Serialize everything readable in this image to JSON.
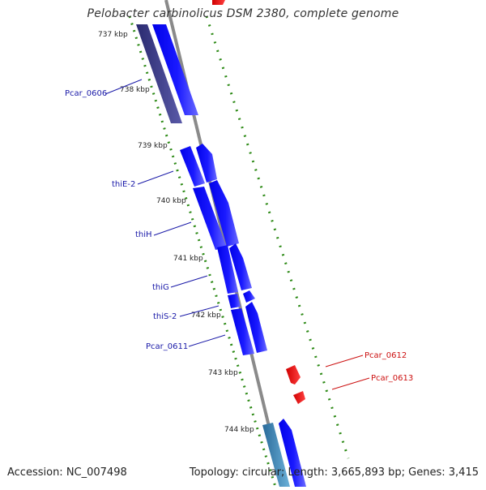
{
  "title": "Pelobacter carbinolicus DSM 2380, complete genome",
  "footer": {
    "accession": "Accession: NC_007498",
    "summary": "Topology: circular; Length: 3,665,893 bp; Genes: 3,415"
  },
  "colors": {
    "forward_gene": "#1010ff",
    "forward_gene_dark": "#3a3a8a",
    "reverse_gene": "#ff1010",
    "ruler": "#2d8a16",
    "backbone": "#8a8a8a",
    "label_forward": "#1a1aa8",
    "label_reverse": "#cc1010"
  },
  "ruler_labels": [
    "737 kbp",
    "738 kbp",
    "739 kbp",
    "740 kbp",
    "741 kbp",
    "742 kbp",
    "743 kbp",
    "744 kbp"
  ],
  "gene_labels": {
    "Pcar_0606": "Pcar_0606",
    "thiE_2": "thiE-2",
    "thiH": "thiH",
    "thiG": "thiG",
    "thiS_2": "thiS-2",
    "Pcar_0611": "Pcar_0611",
    "Pcar_0612": "Pcar_0612",
    "Pcar_0613": "Pcar_0613"
  }
}
